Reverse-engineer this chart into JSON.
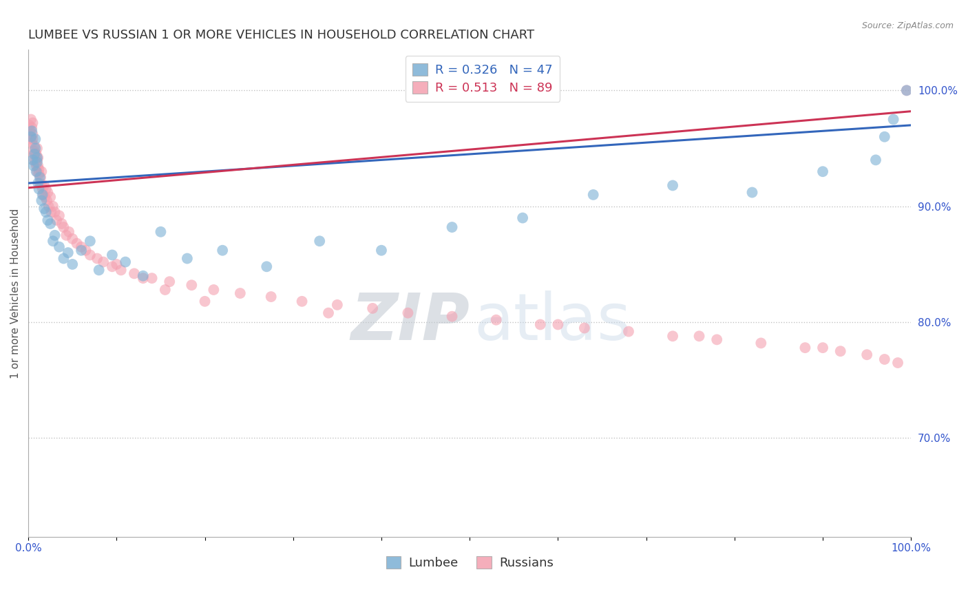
{
  "title": "LUMBEE VS RUSSIAN 1 OR MORE VEHICLES IN HOUSEHOLD CORRELATION CHART",
  "source_text": "Source: ZipAtlas.com",
  "ylabel": "1 or more Vehicles in Household",
  "xlim": [
    0.0,
    1.0
  ],
  "ylim": [
    0.615,
    1.035
  ],
  "xtick_vals": [
    0.0,
    0.1,
    0.2,
    0.3,
    0.4,
    0.5,
    0.6,
    0.7,
    0.8,
    0.9,
    1.0
  ],
  "xticklabels": [
    "0.0%",
    "",
    "",
    "",
    "",
    "",
    "",
    "",
    "",
    "",
    "100.0%"
  ],
  "ytick_vals": [
    0.7,
    0.8,
    0.9,
    1.0
  ],
  "yticklabels": [
    "70.0%",
    "80.0%",
    "90.0%",
    "100.0%"
  ],
  "lumbee_color": "#7bafd4",
  "russian_color": "#f4a0b0",
  "lumbee_line_color": "#3366bb",
  "russian_line_color": "#cc3355",
  "R_lumbee": 0.326,
  "N_lumbee": 47,
  "R_russian": 0.513,
  "N_russian": 89,
  "watermark_zip": "ZIP",
  "watermark_atlas": "atlas",
  "legend_lumbee": "Lumbee",
  "legend_russian": "Russians",
  "background_color": "#ffffff",
  "grid_color": "#bbbbbb",
  "title_color": "#333333",
  "tick_color": "#3355cc",
  "ylabel_color": "#555555",
  "title_fontsize": 13,
  "axis_label_fontsize": 11,
  "tick_fontsize": 11,
  "legend_fontsize": 13,
  "lumbee_x": [
    0.003,
    0.004,
    0.005,
    0.006,
    0.007,
    0.008,
    0.008,
    0.009,
    0.01,
    0.01,
    0.011,
    0.012,
    0.013,
    0.015,
    0.016,
    0.018,
    0.02,
    0.022,
    0.025,
    0.028,
    0.03,
    0.035,
    0.04,
    0.045,
    0.05,
    0.06,
    0.07,
    0.08,
    0.095,
    0.11,
    0.13,
    0.15,
    0.18,
    0.22,
    0.27,
    0.33,
    0.4,
    0.48,
    0.56,
    0.64,
    0.73,
    0.82,
    0.9,
    0.96,
    0.97,
    0.98,
    0.995
  ],
  "lumbee_y": [
    0.96,
    0.965,
    0.94,
    0.935,
    0.945,
    0.95,
    0.958,
    0.93,
    0.942,
    0.938,
    0.92,
    0.915,
    0.925,
    0.905,
    0.91,
    0.898,
    0.895,
    0.888,
    0.885,
    0.87,
    0.875,
    0.865,
    0.855,
    0.86,
    0.85,
    0.862,
    0.87,
    0.845,
    0.858,
    0.852,
    0.84,
    0.878,
    0.855,
    0.862,
    0.848,
    0.87,
    0.862,
    0.882,
    0.89,
    0.91,
    0.918,
    0.912,
    0.93,
    0.94,
    0.96,
    0.975,
    1.0
  ],
  "russian_x": [
    0.001,
    0.002,
    0.002,
    0.003,
    0.003,
    0.004,
    0.004,
    0.005,
    0.005,
    0.005,
    0.006,
    0.006,
    0.007,
    0.007,
    0.008,
    0.008,
    0.009,
    0.009,
    0.01,
    0.01,
    0.01,
    0.011,
    0.011,
    0.012,
    0.012,
    0.013,
    0.014,
    0.015,
    0.015,
    0.016,
    0.017,
    0.018,
    0.019,
    0.02,
    0.021,
    0.022,
    0.023,
    0.025,
    0.026,
    0.028,
    0.03,
    0.032,
    0.035,
    0.038,
    0.04,
    0.043,
    0.046,
    0.05,
    0.055,
    0.06,
    0.065,
    0.07,
    0.078,
    0.085,
    0.095,
    0.105,
    0.12,
    0.14,
    0.16,
    0.185,
    0.21,
    0.24,
    0.275,
    0.31,
    0.35,
    0.39,
    0.43,
    0.48,
    0.53,
    0.58,
    0.63,
    0.68,
    0.73,
    0.78,
    0.83,
    0.88,
    0.92,
    0.95,
    0.97,
    0.985,
    0.1,
    0.13,
    0.155,
    0.2,
    0.34,
    0.6,
    0.76,
    0.9,
    0.995
  ],
  "russian_y": [
    0.97,
    0.965,
    0.96,
    0.975,
    0.958,
    0.968,
    0.955,
    0.972,
    0.962,
    0.958,
    0.948,
    0.945,
    0.952,
    0.94,
    0.946,
    0.938,
    0.945,
    0.935,
    0.93,
    0.94,
    0.95,
    0.935,
    0.942,
    0.928,
    0.932,
    0.92,
    0.925,
    0.918,
    0.93,
    0.915,
    0.91,
    0.918,
    0.908,
    0.915,
    0.905,
    0.912,
    0.9,
    0.908,
    0.895,
    0.9,
    0.895,
    0.888,
    0.892,
    0.885,
    0.882,
    0.875,
    0.878,
    0.872,
    0.868,
    0.865,
    0.862,
    0.858,
    0.855,
    0.852,
    0.848,
    0.845,
    0.842,
    0.838,
    0.835,
    0.832,
    0.828,
    0.825,
    0.822,
    0.818,
    0.815,
    0.812,
    0.808,
    0.805,
    0.802,
    0.798,
    0.795,
    0.792,
    0.788,
    0.785,
    0.782,
    0.778,
    0.775,
    0.772,
    0.768,
    0.765,
    0.85,
    0.838,
    0.828,
    0.818,
    0.808,
    0.798,
    0.788,
    0.778,
    1.0
  ],
  "lumbee_trendline": [
    0.92,
    0.97
  ],
  "russian_trendline": [
    0.916,
    0.982
  ]
}
